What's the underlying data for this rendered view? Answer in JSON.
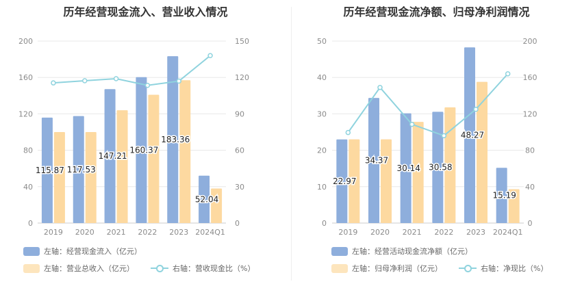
{
  "colors": {
    "bar1": "#8eaedc",
    "bar2": "#fdd9a0",
    "line": "#8fd3de",
    "grid": "#e8e8e8"
  },
  "chart_data": [
    {
      "type": "bar",
      "title": "历年经营现金流入、营业收入情况",
      "categories": [
        "2019",
        "2020",
        "2021",
        "2022",
        "2023",
        "2024Q1"
      ],
      "y_left": {
        "min": 0,
        "max": 200,
        "ticks": [
          0,
          40,
          80,
          120,
          160,
          200
        ]
      },
      "y_right": {
        "min": 0,
        "max": 150,
        "ticks": [
          0,
          30,
          60,
          90,
          120,
          150
        ]
      },
      "series": [
        {
          "name": "左轴：经营现金流入（亿元）",
          "type": "bar",
          "axis": "left",
          "values": [
            115.87,
            117.53,
            147.21,
            160.37,
            183.36,
            52.04
          ],
          "labels": [
            "115.87",
            "117.53",
            "147.21",
            "160.37",
            "183.36",
            "52.04"
          ]
        },
        {
          "name": "左轴：营业总收入（亿元）",
          "type": "bar",
          "axis": "left",
          "values": [
            100,
            100,
            124,
            141,
            157,
            38
          ]
        },
        {
          "name": "右轴：营收现金比（%）",
          "type": "line",
          "axis": "right",
          "values": [
            115.5,
            117.3,
            119,
            113.5,
            117,
            138
          ]
        }
      ],
      "legend": "bottom"
    },
    {
      "type": "bar",
      "title": "历年经营现金流净额、归母净利润情况",
      "categories": [
        "2019",
        "2020",
        "2021",
        "2022",
        "2023",
        "2024Q1"
      ],
      "y_left": {
        "min": 0,
        "max": 50,
        "ticks": [
          0,
          10,
          20,
          30,
          40,
          50
        ]
      },
      "y_right": {
        "min": 0,
        "max": 200,
        "ticks": [
          0,
          40,
          80,
          120,
          160,
          200
        ]
      },
      "series": [
        {
          "name": "左轴：经营活动现金流净额（亿元）",
          "type": "bar",
          "axis": "left",
          "values": [
            22.97,
            34.37,
            30.14,
            30.58,
            48.27,
            15.19
          ],
          "labels": [
            "22.97",
            "34.37",
            "30.14",
            "30.58",
            "48.27",
            "15.19"
          ]
        },
        {
          "name": "左轴：归母净利润（亿元）",
          "type": "bar",
          "axis": "left",
          "values": [
            23,
            23,
            27.8,
            31.8,
            38.8,
            9.3
          ]
        },
        {
          "name": "右轴：净现比（%）",
          "type": "line",
          "axis": "right",
          "values": [
            99.5,
            149,
            108.5,
            96,
            125,
            164
          ]
        }
      ],
      "legend": "bottom"
    }
  ]
}
